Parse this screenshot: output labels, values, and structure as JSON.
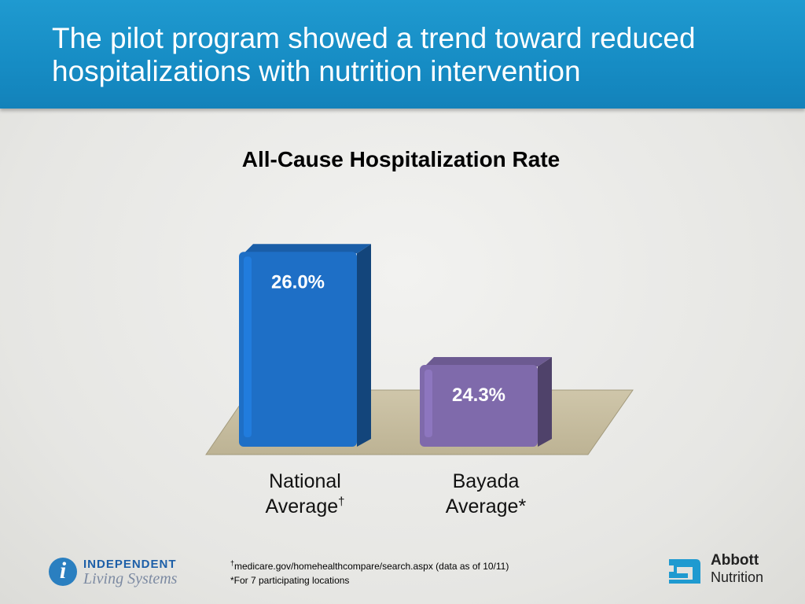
{
  "slide": {
    "title": "The pilot program showed a trend toward reduced hospitalizations with nutrition intervention"
  },
  "chart_data": {
    "type": "bar",
    "title": "All-Cause Hospitalization Rate",
    "categories": [
      "National Average",
      "Bayada Average"
    ],
    "category_markers": [
      "†",
      "*"
    ],
    "values": [
      26.0,
      24.3
    ],
    "value_labels": [
      "26.0%",
      "24.3%"
    ],
    "bar_colors": [
      "#1e6fc6",
      "#7f6aab"
    ],
    "ylim": [
      23,
      26.5
    ],
    "grid": false,
    "legend": "none",
    "xlabel": "",
    "ylabel": ""
  },
  "footnotes": {
    "dagger_marker": "†",
    "dagger_text": "medicare.gov/homehealthcompare/search.aspx (data as of 10/11)",
    "star_text": "*For 7 participating locations"
  },
  "logos": {
    "left": {
      "letter": "i",
      "line1": "INDEPENDENT",
      "line2": "Living Systems"
    },
    "right": {
      "name": "Abbott",
      "sub": "Nutrition",
      "color": "#1f9ad0"
    }
  }
}
